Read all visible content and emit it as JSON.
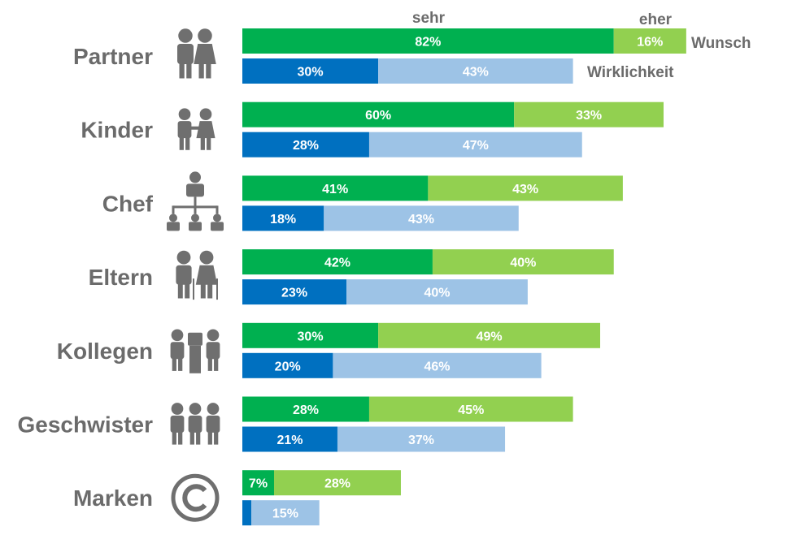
{
  "chart_data": {
    "type": "bar",
    "orientation": "horizontal",
    "stacked": true,
    "header_labels": {
      "sehr": "sehr",
      "eher": "eher"
    },
    "row_labels": {
      "wunsch": "Wunsch",
      "wirklichkeit": "Wirklichkeit"
    },
    "categories": [
      "Partner",
      "Kinder",
      "Chef",
      "Eltern",
      "Kollegen",
      "Geschwister",
      "Marken"
    ],
    "icons": [
      "couple-icon",
      "children-icon",
      "org-chart-icon",
      "elderly-couple-icon",
      "colleagues-icon",
      "siblings-icon",
      "copyright-icon"
    ],
    "wunsch": {
      "sehr": [
        82,
        60,
        41,
        42,
        30,
        28,
        7
      ],
      "eher": [
        16,
        33,
        43,
        40,
        49,
        45,
        28
      ]
    },
    "wirklichkeit": {
      "sehr": [
        30,
        28,
        18,
        23,
        20,
        21,
        2
      ],
      "eher": [
        43,
        47,
        43,
        40,
        46,
        37,
        15
      ]
    },
    "data_labels": {
      "wunsch_sehr": [
        "82%",
        "60%",
        "41%",
        "42%",
        "30%",
        "28%",
        "7%"
      ],
      "wunsch_eher": [
        "16%",
        "33%",
        "43%",
        "40%",
        "49%",
        "45%",
        "28%"
      ],
      "wirklichkeit_sehr": [
        "30%",
        "28%",
        "18%",
        "23%",
        "20%",
        "21%",
        ""
      ],
      "wirklichkeit_eher": [
        "43%",
        "47%",
        "43%",
        "40%",
        "46%",
        "37%",
        "15%"
      ]
    },
    "colors": {
      "wunsch_sehr": "#00b050",
      "wunsch_eher": "#92d050",
      "wirklichkeit_sehr": "#0070c0",
      "wirklichkeit_eher": "#9dc3e6",
      "text": "#6b6b6b"
    },
    "xlim": [
      0,
      100
    ],
    "grid": false
  }
}
